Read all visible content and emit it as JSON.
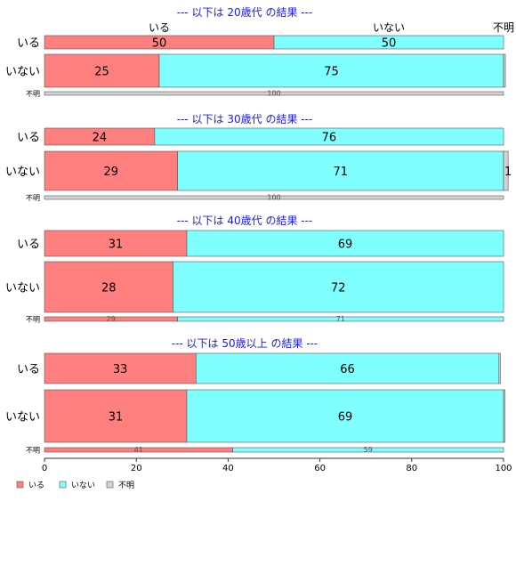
{
  "chart_data": {
    "type": "bar",
    "orientation": "horizontal",
    "stacked": true,
    "legend_position": "bottom-left",
    "top_labels": [
      "いる",
      "いない",
      "不明"
    ],
    "xlim": [
      0,
      100
    ],
    "x_ticks": [
      "0",
      "20",
      "40",
      "60",
      "80",
      "100"
    ],
    "colors": {
      "いる": "#ff7f7f",
      "いない": "#7fffff",
      "不明": "#d3d3d3"
    },
    "legend": [
      {
        "key": "いる",
        "label": "いる"
      },
      {
        "key": "いない",
        "label": "いない"
      },
      {
        "key": "不明",
        "label": "不明"
      }
    ],
    "panels": [
      {
        "title": "--- 以下は 20歳代 の結果 ---",
        "rows": [
          {
            "label": "いる",
            "values": [
              50,
              50,
              0
            ]
          },
          {
            "label": "いない",
            "values": [
              25,
              75,
              0.4
            ]
          },
          {
            "label": "不明",
            "values": [
              0,
              0,
              100
            ]
          }
        ]
      },
      {
        "title": "--- 以下は 30歳代 の結果 ---",
        "rows": [
          {
            "label": "いる",
            "values": [
              24,
              76,
              0
            ]
          },
          {
            "label": "いない",
            "values": [
              29,
              71,
              1
            ]
          },
          {
            "label": "不明",
            "values": [
              0,
              0,
              100
            ]
          }
        ]
      },
      {
        "title": "--- 以下は 40歳代 の結果 ---",
        "rows": [
          {
            "label": "いる",
            "values": [
              31,
              69,
              0
            ]
          },
          {
            "label": "いない",
            "values": [
              28,
              72,
              0
            ]
          },
          {
            "label": "不明",
            "values": [
              29,
              71,
              0
            ]
          }
        ]
      },
      {
        "title": "--- 以下は 50歳以上 の結果 ---",
        "rows": [
          {
            "label": "いる",
            "values": [
              33,
              66,
              0.3
            ]
          },
          {
            "label": "いない",
            "values": [
              31,
              69,
              0.3
            ]
          },
          {
            "label": "不明",
            "values": [
              41,
              59,
              0
            ]
          }
        ]
      }
    ]
  }
}
